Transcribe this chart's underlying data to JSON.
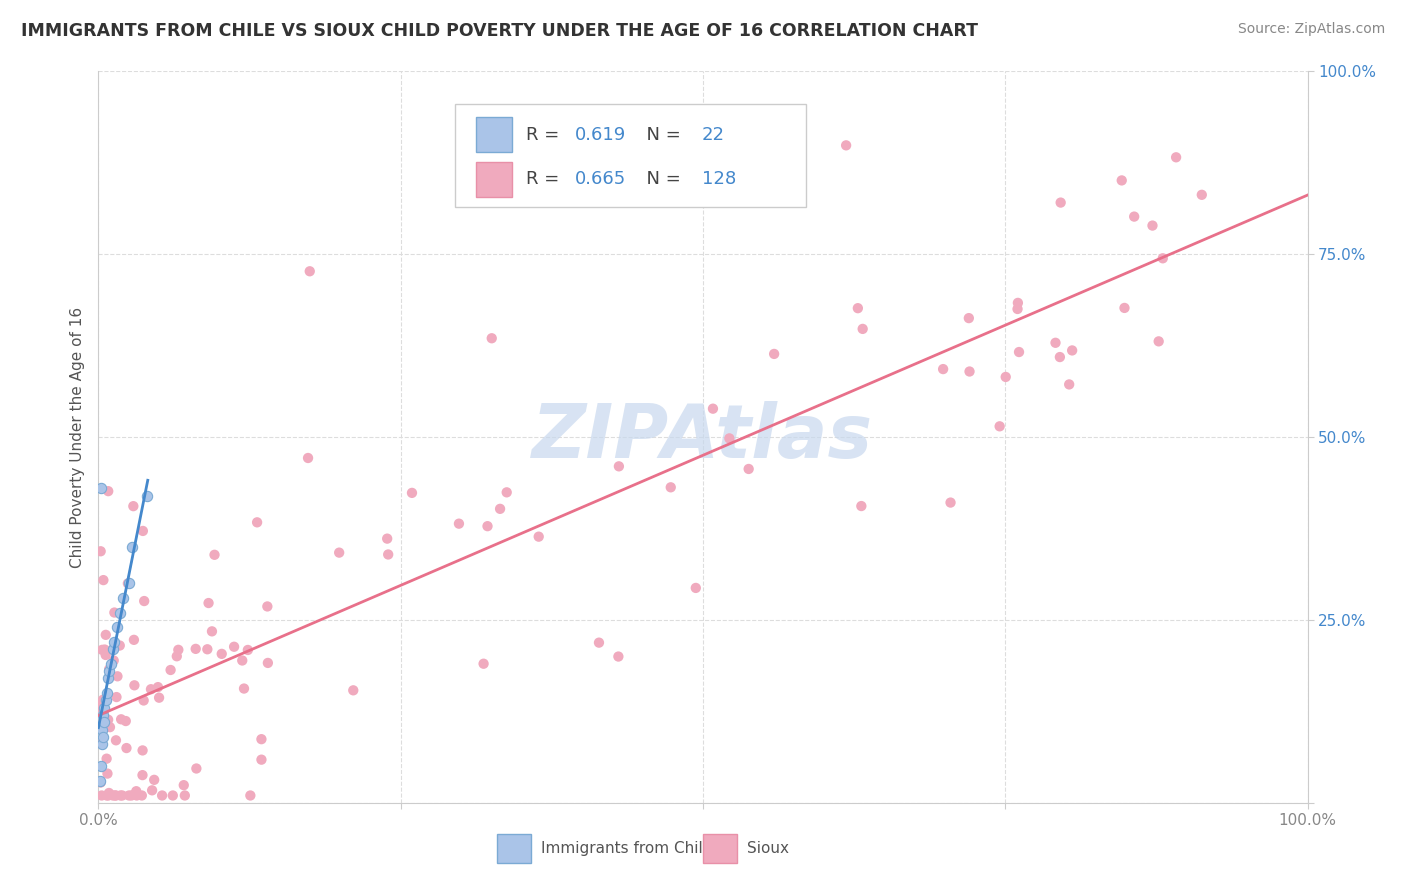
{
  "title": "IMMIGRANTS FROM CHILE VS SIOUX CHILD POVERTY UNDER THE AGE OF 16 CORRELATION CHART",
  "source": "Source: ZipAtlas.com",
  "ylabel": "Child Poverty Under the Age of 16",
  "xlim": [
    0,
    1
  ],
  "ylim": [
    0,
    1
  ],
  "chile_R": 0.619,
  "chile_N": 22,
  "sioux_R": 0.665,
  "sioux_N": 128,
  "chile_dot_color": "#aac4e8",
  "chile_edge_color": "#7baad4",
  "sioux_dot_color": "#f0aabe",
  "sioux_edge_color": "#e890a8",
  "chile_line_color": "#4488cc",
  "sioux_line_color": "#e8708a",
  "legend_color": "#4488cc",
  "watermark_color": "#c8d8ee",
  "ytick_color": "#4488cc",
  "xtick_color": "#888888",
  "ylabel_color": "#555555",
  "title_color": "#333333",
  "source_color": "#888888",
  "grid_color": "#dddddd",
  "legend_edge_color": "#cccccc"
}
